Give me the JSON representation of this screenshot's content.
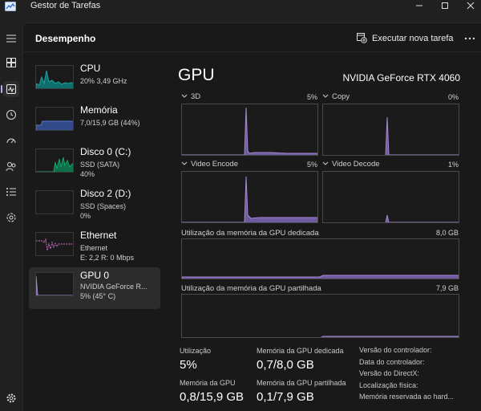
{
  "window": {
    "title": "Gestor de Tarefas"
  },
  "header": {
    "title": "Desempenho",
    "run_task_label": "Executar nova tarefa"
  },
  "nav": {
    "icons": [
      "menu-icon",
      "processes-icon",
      "performance-icon",
      "app-history-icon",
      "startup-apps-icon",
      "users-icon",
      "details-icon",
      "services-icon",
      "settings-icon"
    ]
  },
  "perf_items": [
    {
      "name": "CPU",
      "line1": "20% 3,49 GHz",
      "line2": ""
    },
    {
      "name": "Memória",
      "line1": "7,0/15,9 GB (44%)",
      "line2": ""
    },
    {
      "name": "Disco 0 (C:)",
      "line1": "SSD (SATA)",
      "line2": "40%"
    },
    {
      "name": "Disco 2 (D:)",
      "line1": "SSD (Spaces)",
      "line2": "0%"
    },
    {
      "name": "Ethernet",
      "line1": "Ethernet",
      "line2": "E: 2,2 R: 0 Mbps"
    },
    {
      "name": "GPU 0",
      "line1": "NVIDIA GeForce R...",
      "line2": "5% (45° C)"
    }
  ],
  "gpu": {
    "title": "GPU",
    "model": "NVIDIA GeForce RTX 4060",
    "engines": [
      {
        "name": "3D",
        "percent": "5%"
      },
      {
        "name": "Copy",
        "percent": "0%"
      },
      {
        "name": "Video Encode",
        "percent": "5%"
      },
      {
        "name": "Video Decode",
        "percent": "1%"
      }
    ],
    "dedicated_memory": {
      "label": "Utilização da memória da GPU dedicada",
      "max": "8,0 GB"
    },
    "shared_memory": {
      "label": "Utilização da memória da GPU partilhada",
      "max": "7,9 GB"
    },
    "stats": {
      "utilization_label": "Utilização",
      "utilization_value": "5%",
      "dedicated_label": "Memória da GPU dedicada",
      "dedicated_value": "0,7/8,0 GB",
      "gpu_memory_label": "Memória da GPU",
      "gpu_memory_value": "0,8/15,9 GB",
      "shared_label": "Memória da GPU partilhada",
      "shared_value": "0,1/7,9 GB"
    },
    "info": [
      "Versão do controlador:",
      "Data do controlador:",
      "Versão do DirectX:",
      "Localização física:",
      "Memória reservada ao hard..."
    ]
  },
  "colors": {
    "accent": "#c3a6ff",
    "gpu_fill": "#6e5a9e",
    "gpu_line": "#a48ad6",
    "cpu_fill": "#17a5a0",
    "memory_fill": "#5a7ad2",
    "disk_fill": "#17a56a",
    "ethernet_line": "#c86ec0"
  }
}
